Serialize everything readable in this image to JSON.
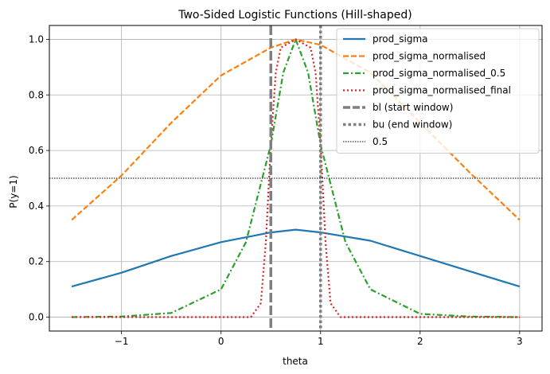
{
  "chart_data": {
    "type": "line",
    "title": "Two-Sided Logistic Functions (Hill-shaped)",
    "xlabel": "theta",
    "ylabel": "P(y=1)",
    "xlim": [
      -1.725,
      3.225
    ],
    "ylim": [
      -0.05,
      1.05
    ],
    "xticks": [
      -1,
      0,
      1,
      2,
      3
    ],
    "xtick_labels": [
      "−1",
      "0",
      "1",
      "2",
      "3"
    ],
    "yticks": [
      0.0,
      0.2,
      0.4,
      0.6,
      0.8,
      1.0
    ],
    "ytick_labels": [
      "0.0",
      "0.2",
      "0.4",
      "0.6",
      "0.8",
      "1.0"
    ],
    "grid": true,
    "legend_position": "top-right",
    "series": [
      {
        "name": "prod_sigma",
        "color": "#1f77b4",
        "style": "solid",
        "x": [
          -1.5,
          -1.0,
          -0.5,
          0.0,
          0.5,
          0.75,
          1.0,
          1.5,
          2.0,
          2.5,
          3.0
        ],
        "y": [
          0.11,
          0.16,
          0.22,
          0.27,
          0.305,
          0.315,
          0.305,
          0.275,
          0.22,
          0.165,
          0.11
        ]
      },
      {
        "name": "prod_sigma_normalised",
        "color": "#ff7f0e",
        "style": "dashed",
        "x": [
          -1.5,
          -1.0,
          -0.5,
          0.0,
          0.5,
          0.75,
          1.0,
          1.5,
          2.0,
          2.5,
          3.0
        ],
        "y": [
          0.35,
          0.51,
          0.7,
          0.87,
          0.97,
          1.0,
          0.98,
          0.88,
          0.7,
          0.52,
          0.35
        ]
      },
      {
        "name": "prod_sigma_normalised_0.5",
        "color": "#2ca02c",
        "style": "dashdot",
        "x": [
          -1.5,
          -1.0,
          -0.5,
          0.0,
          0.25,
          0.5,
          0.625,
          0.75,
          0.875,
          1.0,
          1.25,
          1.5,
          2.0,
          2.5,
          3.0
        ],
        "y": [
          0.0,
          0.002,
          0.015,
          0.1,
          0.27,
          0.62,
          0.88,
          1.0,
          0.88,
          0.62,
          0.27,
          0.1,
          0.012,
          0.002,
          0.0
        ]
      },
      {
        "name": "prod_sigma_normalised_final",
        "color": "#d62728",
        "style": "dotted",
        "x": [
          -1.5,
          0.3,
          0.4,
          0.45,
          0.5,
          0.55,
          0.6,
          0.75,
          0.9,
          0.95,
          1.0,
          1.05,
          1.1,
          1.2,
          3.0
        ],
        "y": [
          0.0,
          0.0,
          0.05,
          0.27,
          0.62,
          0.88,
          0.97,
          1.0,
          0.97,
          0.88,
          0.62,
          0.27,
          0.05,
          0.0,
          0.0
        ]
      },
      {
        "name": "bl (start window)",
        "color": "#7f7f7f",
        "style": "dashed",
        "vline": 0.5
      },
      {
        "name": "bu (end window)",
        "color": "#7f7f7f",
        "style": "dotted",
        "vline": 1.0
      },
      {
        "name": "0.5",
        "color": "#000000",
        "style": "dotted",
        "hline": 0.5
      }
    ]
  }
}
